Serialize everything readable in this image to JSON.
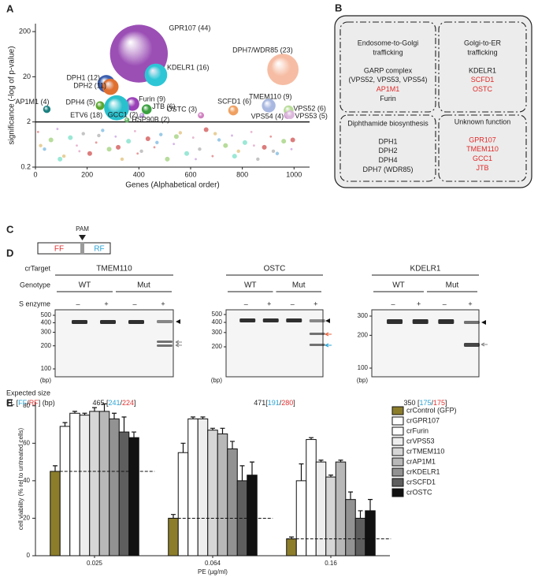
{
  "panel_labels": [
    "A",
    "B",
    "C",
    "D",
    "E"
  ],
  "chart_data": [
    {
      "type": "bubble",
      "y_label": "significance (-log of p-value)",
      "x_label": "Genes (Alphabetical order)",
      "xlim": [
        0,
        1060
      ],
      "xticks": [
        0,
        200,
        400,
        600,
        800,
        1000
      ],
      "ylim": [
        0.2,
        300
      ],
      "yticks": [
        0.2,
        2,
        20,
        200
      ],
      "log_y": true,
      "threshold": 2,
      "points": {
        "labels": [
          "GPR107 (44)",
          "KDELR1 (16)",
          "DPH7/WDR85 (23)",
          "DPH1 (12)",
          "DPH2 (11)",
          "AP1M1 (4)",
          "DPH4 (5)",
          "Furin (9)",
          "ETV6 (18)",
          "JTB (6)",
          "GCC1 (2)",
          "HSP90B (2)",
          "OSTC (3)",
          "SCFD1 (6)",
          "TMEM110 (9)",
          "VPS52 (6)",
          "VPS54 (4)",
          "VPS53 (5)"
        ],
        "x": [
          400,
          466,
          957,
          274,
          290,
          44,
          250,
          375,
          314,
          430,
          412,
          354,
          640,
          765,
          902,
          979,
          975,
          985
        ],
        "y": [
          65,
          22,
          29,
          14,
          12,
          3.8,
          4.6,
          5.0,
          4.1,
          3.8,
          2.8,
          2.2,
          2.8,
          3.6,
          4.6,
          3.6,
          2.8,
          2.9
        ],
        "size": [
          44,
          16,
          23,
          12,
          11,
          4,
          5,
          9,
          18,
          6,
          2,
          2,
          3,
          6,
          9,
          6,
          4,
          5
        ],
        "colors": [
          "#9b4fb5",
          "#2cc6d6",
          "#f6bda4",
          "#3b5fb0",
          "#e07030",
          "#1a8080",
          "#5aa830",
          "#9a40b8",
          "#28c0cc",
          "#3aa040",
          "#b090d0",
          "#60b060",
          "#d080c0",
          "#f0a060",
          "#a8b8e0",
          "#b8dc98",
          "#d0a0d0",
          "#dcb8dc"
        ]
      },
      "background": {
        "x": [
          10,
          35,
          60,
          85,
          110,
          135,
          160,
          185,
          210,
          235,
          260,
          285,
          310,
          335,
          360,
          385,
          410,
          435,
          460,
          485,
          510,
          535,
          560,
          585,
          610,
          635,
          660,
          685,
          710,
          735,
          760,
          785,
          810,
          835,
          860,
          885,
          910,
          935,
          960,
          990,
          20,
          95,
          170,
          245,
          320,
          395,
          470,
          545,
          620,
          695,
          770,
          845,
          920,
          995
        ],
        "y": [
          1.2,
          0.5,
          0.8,
          1.4,
          0.35,
          0.9,
          0.6,
          1.1,
          0.4,
          0.7,
          1.3,
          0.5,
          0.95,
          0.3,
          0.75,
          1.25,
          0.45,
          0.85,
          0.55,
          1.05,
          0.3,
          0.65,
          1.15,
          0.4,
          0.9,
          0.5,
          1.35,
          0.35,
          0.8,
          0.6,
          1.0,
          0.45,
          0.7,
          1.2,
          0.3,
          0.55,
          0.95,
          0.4,
          0.75,
          0.5,
          0.6,
          0.3,
          0.45,
          1.0,
          0.55,
          0.4,
          0.7,
          0.95,
          0.3,
          1.1,
          0.35,
          0.6,
          0.45,
          0.8
        ],
        "palette": [
          "#e07a7a",
          "#7ab8e0",
          "#9fd07a",
          "#c89be0",
          "#e0c07a",
          "#7ae0c8",
          "#e09fc0",
          "#b0b0b0",
          "#d05050"
        ]
      }
    },
    {
      "type": "bar",
      "y_label": "cell viability (% rel to untreated cells)",
      "x_label": "PE (µg/ml)",
      "categories": [
        "0.025",
        "0.064",
        "0.16"
      ],
      "ylim": [
        0,
        82
      ],
      "yticks": [
        0,
        20,
        40,
        60,
        80
      ],
      "control_lines": true,
      "series": [
        {
          "name": "crControl (GFP)",
          "color": "#8c7d2b",
          "values": [
            45,
            20,
            9
          ],
          "errors": [
            3,
            2,
            1
          ]
        },
        {
          "name": "crGPR107",
          "color": "#ffffff",
          "values": [
            69,
            55,
            40
          ],
          "errors": [
            2,
            5,
            9
          ]
        },
        {
          "name": "crFurin",
          "color": "#ffffff",
          "values": [
            76,
            73,
            62
          ],
          "errors": [
            1,
            1,
            1
          ]
        },
        {
          "name": "crVPS53",
          "color": "#eeeeee",
          "values": [
            75,
            73,
            50
          ],
          "errors": [
            1,
            1,
            1
          ]
        },
        {
          "name": "crTMEM110",
          "color": "#d6d6d6",
          "values": [
            77,
            67,
            42
          ],
          "errors": [
            2,
            1,
            1
          ]
        },
        {
          "name": "crAP1M1",
          "color": "#b8b8b8",
          "values": [
            77,
            65,
            50
          ],
          "errors": [
            4,
            3,
            1
          ]
        },
        {
          "name": "crKDELR1",
          "color": "#929292",
          "values": [
            73,
            57,
            30
          ],
          "errors": [
            3,
            4,
            4
          ]
        },
        {
          "name": "crSCFD1",
          "color": "#5e5e5e",
          "values": [
            66,
            40,
            20
          ],
          "errors": [
            8,
            8,
            4
          ]
        },
        {
          "name": "crOSTC",
          "color": "#111111",
          "values": [
            63,
            43,
            24
          ],
          "errors": [
            3,
            7,
            6
          ]
        }
      ]
    }
  ],
  "panel_b": {
    "boxes": [
      {
        "title": [
          "Endosome-to-Golgi",
          "trafficking"
        ],
        "items": [
          {
            "text": "GARP complex",
            "color": "#222222"
          },
          {
            "text": "(VPS52, VPS53, VPS54)",
            "color": "#222222"
          },
          {
            "text": "AP1M1",
            "color": "#e02828"
          },
          {
            "text": "Furin",
            "color": "#222222"
          }
        ]
      },
      {
        "title": [
          "Golgi-to-ER",
          "trafficking"
        ],
        "items": [
          {
            "text": "KDELR1",
            "color": "#222222"
          },
          {
            "text": "SCFD1",
            "color": "#e02828"
          },
          {
            "text": "OSTC",
            "color": "#e02828"
          }
        ]
      },
      {
        "title": [
          "Diphthamide biosynthesis"
        ],
        "items": [
          {
            "text": "DPH1",
            "color": "#222222"
          },
          {
            "text": "DPH2",
            "color": "#222222"
          },
          {
            "text": "DPH4",
            "color": "#222222"
          },
          {
            "text": "DPH7 (WDR85)",
            "color": "#222222"
          }
        ]
      },
      {
        "title": [
          "Unknown function"
        ],
        "items": [
          {
            "text": "GPR107",
            "color": "#e02828"
          },
          {
            "text": "TMEM110",
            "color": "#e02828"
          },
          {
            "text": "GCC1",
            "color": "#e02828"
          },
          {
            "text": "JTB",
            "color": "#e02828"
          }
        ]
      }
    ]
  },
  "panel_c": {
    "pam": "PAM",
    "ff": "FF",
    "rf": "RF"
  },
  "panel_d": {
    "row_labels": [
      "crTarget",
      "Genotype",
      "S enzyme"
    ],
    "expected_label": "Expected size",
    "fl_legend": [
      {
        "text": "FL [",
        "color": "#222222"
      },
      {
        "text": "FF",
        "color": "#29a3d6"
      },
      {
        "text": "/",
        "color": "#222222"
      },
      {
        "text": "RF",
        "color": "#e03333"
      },
      {
        "text": "] (bp)",
        "color": "#222222"
      }
    ],
    "gels": [
      {
        "target": "TMEM110",
        "genotypes": [
          "WT",
          "Mut"
        ],
        "enzyme": [
          "–",
          "+",
          "–",
          "+"
        ],
        "ladder": [
          500,
          400,
          300,
          200,
          100
        ],
        "unit": "(bp)",
        "expected": [
          {
            "text": "465 [",
            "color": "#222222"
          },
          {
            "text": "241",
            "color": "#29a3d6"
          },
          {
            "text": "/",
            "color": "#222222"
          },
          {
            "text": "224",
            "color": "#e03333"
          },
          {
            "text": "]",
            "color": "#222222"
          }
        ]
      },
      {
        "target": "OSTC",
        "genotypes": [
          "WT",
          "Mut"
        ],
        "enzyme": [
          "–",
          "+",
          "–",
          "+"
        ],
        "ladder": [
          500,
          400,
          300,
          200
        ],
        "unit": "(bp)",
        "expected": [
          {
            "text": "471[",
            "color": "#222222"
          },
          {
            "text": "191",
            "color": "#29a3d6"
          },
          {
            "text": "/",
            "color": "#222222"
          },
          {
            "text": "280",
            "color": "#e03333"
          },
          {
            "text": "]",
            "color": "#222222"
          }
        ]
      },
      {
        "target": "KDELR1",
        "genotypes": [
          "WT",
          "Mut"
        ],
        "enzyme": [
          "–",
          "+",
          "–",
          "+"
        ],
        "ladder": [
          300,
          200,
          100
        ],
        "unit": "(bp)",
        "expected": [
          {
            "text": "350 [",
            "color": "#222222"
          },
          {
            "text": "175",
            "color": "#29a3d6"
          },
          {
            "text": "/",
            "color": "#222222"
          },
          {
            "text": "175",
            "color": "#e03333"
          },
          {
            "text": "]",
            "color": "#222222"
          }
        ]
      }
    ]
  }
}
